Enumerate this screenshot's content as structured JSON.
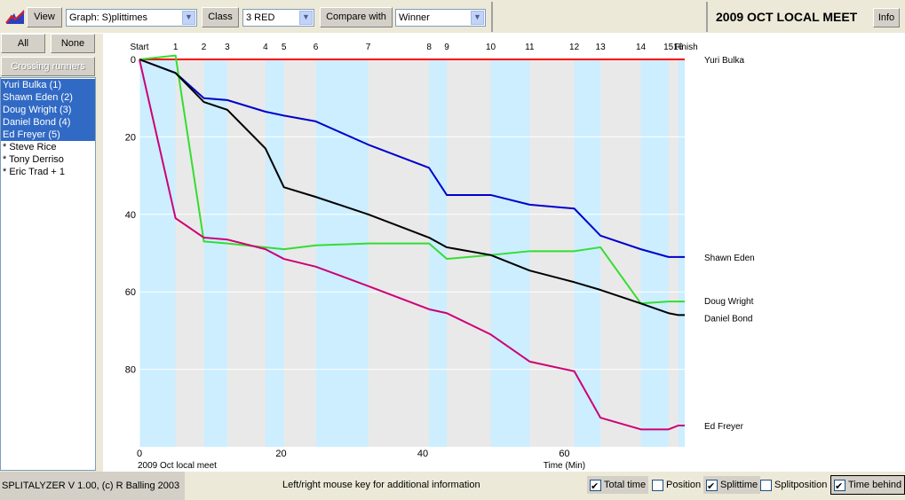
{
  "toolbar": {
    "view_label": "View",
    "graph_select": "Graph: S)plittimes",
    "class_label": "Class",
    "class_select": "3 RED",
    "compare_label": "Compare with",
    "compare_select": "Winner",
    "event_title": "2009 OCT LOCAL MEET",
    "info_label": "Info"
  },
  "sidebar": {
    "all_label": "All",
    "none_label": "None",
    "crossing_label": "Crossing runners",
    "runners": [
      {
        "label": "Yuri Bulka  (1)",
        "selected": true
      },
      {
        "label": "Shawn Eden  (2)",
        "selected": true
      },
      {
        "label": "Doug Wright  (3)",
        "selected": true
      },
      {
        "label": "Daniel Bond  (4)",
        "selected": true
      },
      {
        "label": "Ed Freyer  (5)",
        "selected": true
      },
      {
        "label": "* Steve Rice",
        "selected": false
      },
      {
        "label": "* Tony Derriso",
        "selected": false
      },
      {
        "label": "* Eric Trad + 1",
        "selected": false
      }
    ]
  },
  "status": {
    "version": "SPLITALYZER V 1.00, (c) R Balling 2003",
    "hint": "Left/right mouse key for additional information",
    "options": [
      {
        "label": "Total time",
        "checked": true
      },
      {
        "label": "Position",
        "checked": false
      },
      {
        "label": "Splittime",
        "checked": true
      },
      {
        "label": "Splitposition",
        "checked": false
      },
      {
        "label": "Time behind",
        "checked": true
      }
    ]
  },
  "chart_data": {
    "type": "line",
    "event_label": "2009 Oct local meet",
    "xlabel": "Time (Min)",
    "ylabel": "",
    "xlim": [
      0,
      77
    ],
    "ylim": [
      0,
      100
    ],
    "x_ticks": [
      0,
      20,
      40,
      60
    ],
    "y_ticks": [
      0,
      20,
      40,
      60,
      80
    ],
    "controls": [
      "Start",
      "1",
      "2",
      "3",
      "4",
      "5",
      "6",
      "7",
      "8",
      "9",
      "10",
      "11",
      "12",
      "13",
      "14",
      "15",
      "16",
      "Finish"
    ],
    "control_times": [
      0,
      5.1,
      9.1,
      12.4,
      17.8,
      20.4,
      24.9,
      32.3,
      40.9,
      43.4,
      49.6,
      55.1,
      61.4,
      65.1,
      70.8,
      74.7,
      76.1,
      77.0
    ],
    "series": [
      {
        "name": "Yuri Bulka",
        "color": "#ff0000",
        "values": [
          0,
          0,
          0,
          0,
          0,
          0,
          0,
          0,
          0,
          0,
          0,
          0,
          0,
          0,
          0,
          0,
          0,
          0
        ]
      },
      {
        "name": "Shawn Eden",
        "color": "#0000cc",
        "values": [
          0,
          3.5,
          10,
          10.5,
          13.5,
          14.5,
          16,
          22,
          28,
          35,
          35,
          37.5,
          38.5,
          45.5,
          49,
          51,
          51,
          51
        ]
      },
      {
        "name": "Doug Wright",
        "color": "#33dd33",
        "values": [
          0,
          -1,
          47,
          47.5,
          48.5,
          49,
          48,
          47.5,
          47.5,
          51.5,
          50.5,
          49.5,
          49.5,
          48.5,
          63,
          62.5,
          62.5,
          62.5
        ]
      },
      {
        "name": "Daniel Bond",
        "color": "#000000",
        "values": [
          0,
          3.5,
          11,
          13,
          23,
          33,
          35.5,
          40,
          46,
          48.5,
          50.5,
          54.5,
          57.5,
          59.5,
          63,
          65.5,
          66,
          66
        ]
      },
      {
        "name": "Ed Freyer",
        "color": "#cc0077",
        "values": [
          0,
          41,
          46,
          46.5,
          49,
          51.5,
          53.5,
          58.5,
          64.5,
          65.5,
          71,
          78,
          80.5,
          92.5,
          95.5,
          95.5,
          94.5,
          94.5
        ]
      }
    ],
    "grid": true
  }
}
